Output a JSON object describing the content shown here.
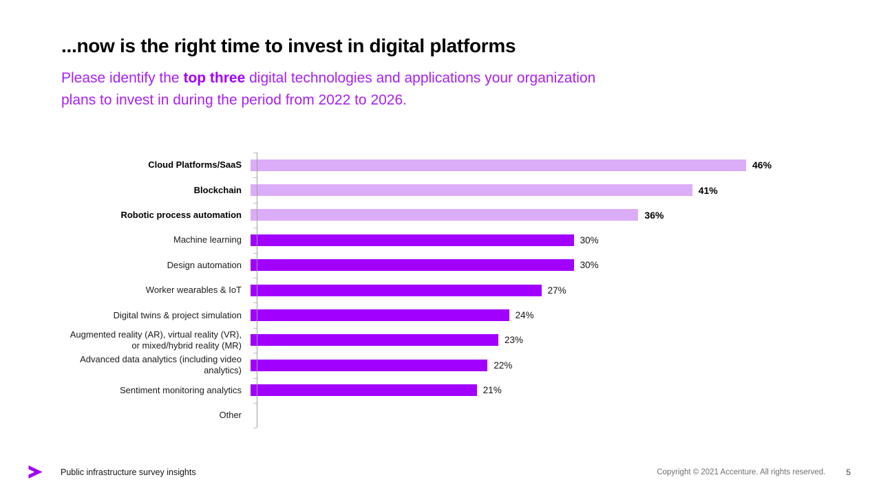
{
  "header": {
    "title": "...now is the right time to invest in digital platforms",
    "subtitle_prefix": "Please identify the ",
    "subtitle_bold": "top three",
    "subtitle_suffix": " digital technologies and applications your organization",
    "subtitle_line2": "plans to invest in during the period from 2022 to 2026."
  },
  "colors": {
    "brand_purple": "#A100FF",
    "bar_highlight_light": "#DBACF7",
    "bar_standard": "#A100FF",
    "axis_gray": "#9E9E9E",
    "subtitle_purple": "#A721F0",
    "copyright_gray": "#6F6F6F"
  },
  "chart_data": {
    "type": "bar",
    "orientation": "horizontal",
    "title": "",
    "xlabel": "",
    "ylabel": "",
    "xlim": [
      0,
      50
    ],
    "unit": "%",
    "grid": false,
    "legend": false,
    "categories": [
      "Cloud Platforms/SaaS",
      "Blockchain",
      "Robotic process automation",
      "Machine learning",
      "Design automation",
      "Worker wearables & IoT",
      "Digital twins & project simulation",
      "Augmented reality (AR), virtual reality (VR), or mixed/hybrid reality (MR)",
      "Advanced data analytics (including video analytics)",
      "Sentiment monitoring analytics",
      "Other"
    ],
    "label_lines": [
      [
        "Cloud Platforms/SaaS"
      ],
      [
        "Blockchain"
      ],
      [
        "Robotic process automation"
      ],
      [
        "Machine learning"
      ],
      [
        "Design automation"
      ],
      [
        "Worker wearables & IoT"
      ],
      [
        "Digital twins & project simulation"
      ],
      [
        "Augmented reality (AR), virtual reality (VR),",
        "or mixed/hybrid reality (MR)"
      ],
      [
        "Advanced data analytics (including video",
        "analytics)"
      ],
      [
        "Sentiment monitoring analytics"
      ],
      [
        "Other"
      ]
    ],
    "values": [
      46,
      41,
      36,
      30,
      30,
      27,
      24,
      23,
      22,
      21,
      0
    ],
    "value_labels": [
      "46%",
      "41%",
      "36%",
      "30%",
      "30%",
      "27%",
      "24%",
      "23%",
      "22%",
      "21%",
      ""
    ],
    "emphasized": [
      true,
      true,
      true,
      false,
      false,
      false,
      false,
      false,
      false,
      false,
      false
    ]
  },
  "footer": {
    "logo": "accenture-greater-than",
    "left_text": "Public infrastructure survey insights",
    "copyright": "Copyright © 2021 Accenture. All rights reserved.",
    "page_number": "5"
  }
}
